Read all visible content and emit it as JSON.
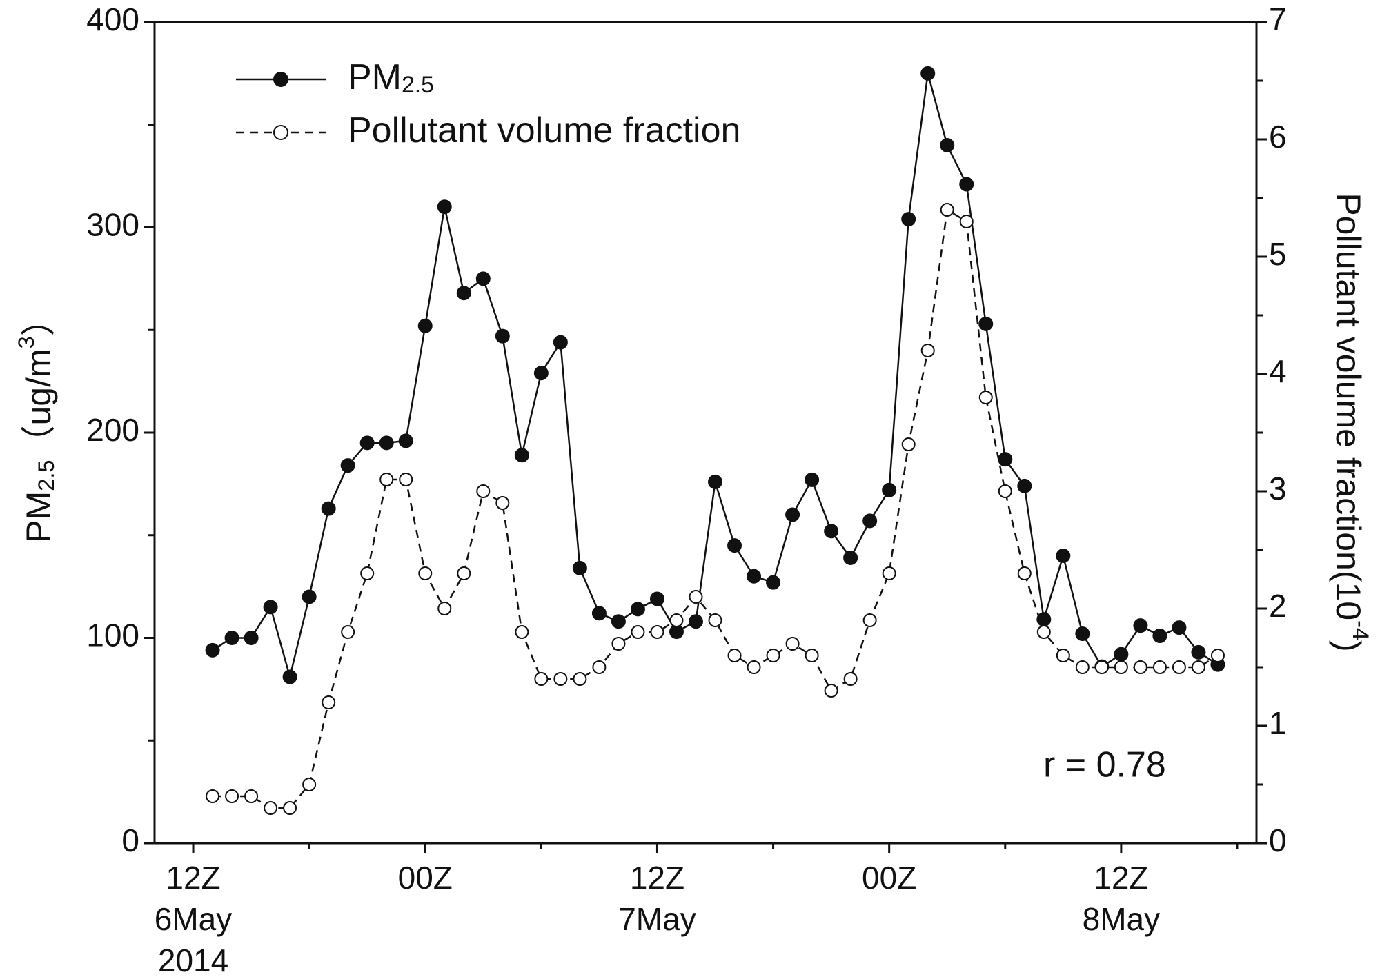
{
  "chart_data": {
    "type": "line",
    "ylabel": [
      "PM",
      "2.5",
      "（ug/m",
      "3",
      "）"
    ],
    "y2label": [
      "Pollutant volume fraction(10",
      "-4",
      ")"
    ],
    "annotation": "r = 0.78",
    "x": [
      1,
      2,
      3,
      4,
      5,
      6,
      7,
      8,
      9,
      10,
      11,
      12,
      13,
      14,
      15,
      16,
      17,
      18,
      19,
      20,
      21,
      22,
      23,
      24,
      25,
      26,
      27,
      28,
      29,
      30,
      31,
      32,
      33,
      34,
      35,
      36,
      37,
      38,
      39,
      40,
      41,
      42,
      43,
      44,
      45,
      46,
      47,
      48,
      49,
      50,
      51,
      52,
      53
    ],
    "series": [
      {
        "name": [
          "PM",
          "2.5"
        ],
        "color": "#111111",
        "dash": false,
        "marker": "filled",
        "values": [
          94,
          100,
          100,
          115,
          81,
          120,
          163,
          184,
          195,
          195,
          196,
          252,
          310,
          268,
          275,
          247,
          189,
          229,
          244,
          134,
          112,
          108,
          114,
          119,
          103,
          108,
          176,
          145,
          130,
          127,
          160,
          177,
          152,
          139,
          157,
          172,
          304,
          375,
          340,
          321,
          253,
          187,
          174,
          109,
          140,
          102,
          86,
          92,
          106,
          101,
          105,
          93,
          87
        ]
      },
      {
        "name": [
          "Pollutant volume fraction"
        ],
        "color": "#111111",
        "dash": true,
        "marker": "open",
        "axis": "y2",
        "values": [
          0.4,
          0.4,
          0.4,
          0.3,
          0.3,
          0.5,
          1.2,
          1.8,
          2.3,
          3.1,
          3.1,
          2.3,
          2.0,
          2.3,
          3.0,
          2.9,
          1.8,
          1.4,
          1.4,
          1.4,
          1.5,
          1.7,
          1.8,
          1.8,
          1.9,
          2.1,
          1.9,
          1.6,
          1.5,
          1.6,
          1.7,
          1.6,
          1.3,
          1.4,
          1.9,
          2.3,
          3.4,
          4.2,
          5.4,
          5.3,
          3.8,
          3.0,
          2.3,
          1.8,
          1.6,
          1.5,
          1.5,
          1.5,
          1.5,
          1.5,
          1.5,
          1.5,
          1.6
        ]
      }
    ],
    "xlim": [
      -2,
      55
    ],
    "xticks": [
      {
        "value": 0,
        "label": [
          "12Z",
          "6May",
          "2014"
        ]
      },
      {
        "value": 12,
        "label": [
          "00Z"
        ]
      },
      {
        "value": 24,
        "label": [
          "12Z",
          "7May"
        ]
      },
      {
        "value": 36,
        "label": [
          "00Z"
        ]
      },
      {
        "value": 48,
        "label": [
          "12Z",
          "8May"
        ]
      }
    ],
    "xminor_ticks": [
      6,
      18,
      30,
      42,
      54
    ],
    "ylim": [
      0,
      400
    ],
    "yticks": [
      0,
      100,
      200,
      300,
      400
    ],
    "yminor_ticks": [
      50,
      150,
      250,
      350
    ],
    "y2lim": [
      0,
      7
    ],
    "y2ticks": [
      0,
      1,
      2,
      3,
      4,
      5,
      6,
      7
    ],
    "y2minor_ticks": [
      0.5,
      1.5,
      2.5,
      3.5,
      4.5,
      5.5,
      6.5
    ],
    "legend": "upper left",
    "grid": false
  }
}
